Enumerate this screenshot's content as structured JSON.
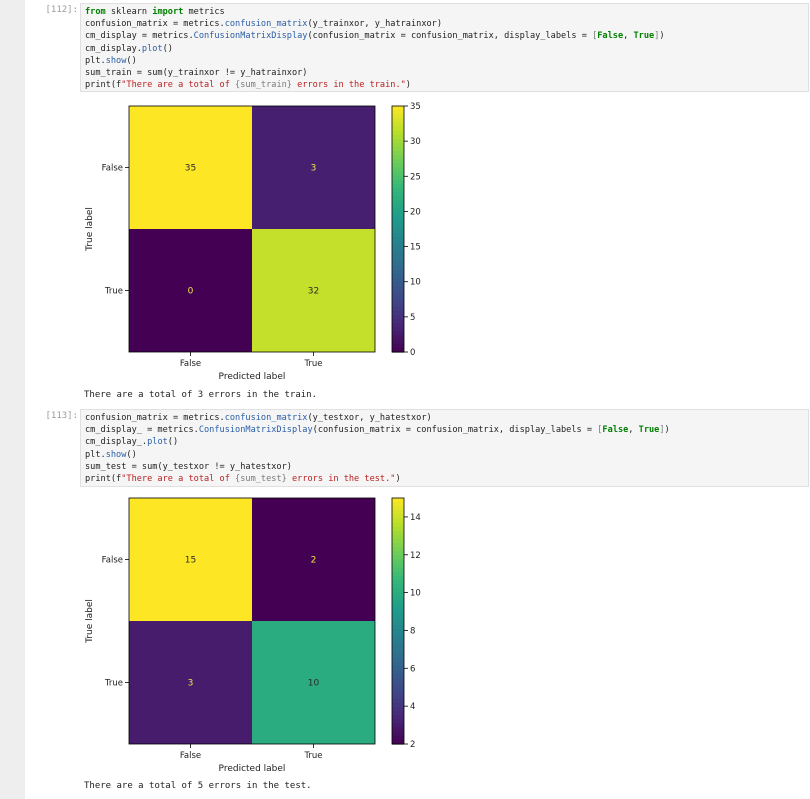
{
  "cells": [
    {
      "prompt": "[112]:",
      "code": [
        [
          {
            "t": "from",
            "c": "kw"
          },
          {
            "t": " sklearn "
          },
          {
            "t": "import",
            "c": "kw"
          },
          {
            "t": " metrics"
          }
        ],
        [
          {
            "t": "confusion_matrix = metrics."
          },
          {
            "t": "confusion_matrix",
            "c": "fn"
          },
          {
            "t": "(y_trainxor, y_hatrainxor)"
          }
        ],
        [
          {
            "t": "cm_display = metrics."
          },
          {
            "t": "ConfusionMatrixDisplay",
            "c": "fn"
          },
          {
            "t": "(confusion_matrix = confusion_matrix, display_labels = "
          },
          {
            "t": "[",
            "c": "brk"
          },
          {
            "t": "False",
            "c": "bool"
          },
          {
            "t": ", "
          },
          {
            "t": "True",
            "c": "bool"
          },
          {
            "t": "]",
            "c": "brk"
          },
          {
            "t": ")"
          }
        ],
        [
          {
            "t": "cm_display."
          },
          {
            "t": "plot",
            "c": "fn"
          },
          {
            "t": "()"
          }
        ],
        [
          {
            "t": "plt."
          },
          {
            "t": "show",
            "c": "fn"
          },
          {
            "t": "()"
          }
        ],
        [
          {
            "t": "sum_train = sum(y_trainxor != y_hatrainxor)"
          }
        ],
        [
          {
            "t": "print(f"
          },
          {
            "t": "\"There are a total of ",
            "c": "str"
          },
          {
            "t": "{sum_train}",
            "c": "brk"
          },
          {
            "t": " errors in the train.\"",
            "c": "str"
          },
          {
            "t": ")"
          }
        ]
      ],
      "output": "There are a total of 3 errors in the train.",
      "chart_data": {
        "type": "heatmap",
        "x_categories": [
          "False",
          "True"
        ],
        "y_categories": [
          "False",
          "True"
        ],
        "values": [
          [
            35,
            3
          ],
          [
            0,
            32
          ]
        ],
        "xlabel": "Predicted label",
        "ylabel": "True label",
        "colorbar": {
          "min": 0,
          "max": 35,
          "ticks": [
            0,
            5,
            10,
            15,
            20,
            25,
            30,
            35
          ]
        },
        "colormap": "viridis"
      }
    },
    {
      "prompt": "[113]:",
      "code": [
        [
          {
            "t": "confusion_matrix = metrics."
          },
          {
            "t": "confusion_matrix",
            "c": "fn"
          },
          {
            "t": "(y_testxor, y_hatestxor)"
          }
        ],
        [
          {
            "t": "cm_display_ = metrics."
          },
          {
            "t": "ConfusionMatrixDisplay",
            "c": "fn"
          },
          {
            "t": "(confusion_matrix = confusion_matrix, display_labels = "
          },
          {
            "t": "[",
            "c": "brk"
          },
          {
            "t": "False",
            "c": "bool"
          },
          {
            "t": ", "
          },
          {
            "t": "True",
            "c": "bool"
          },
          {
            "t": "]",
            "c": "brk"
          },
          {
            "t": ")"
          }
        ],
        [
          {
            "t": "cm_display_."
          },
          {
            "t": "plot",
            "c": "fn"
          },
          {
            "t": "()"
          }
        ],
        [
          {
            "t": "plt."
          },
          {
            "t": "show",
            "c": "fn"
          },
          {
            "t": "()"
          }
        ],
        [
          {
            "t": "sum_test = sum(y_testxor != y_hatestxor)"
          }
        ],
        [
          {
            "t": "print(f"
          },
          {
            "t": "\"There are a total of ",
            "c": "str"
          },
          {
            "t": "{sum_test}",
            "c": "brk"
          },
          {
            "t": " errors in the test.\"",
            "c": "str"
          },
          {
            "t": ")"
          }
        ]
      ],
      "output": "There are a total of 5 errors in the test.",
      "chart_data": {
        "type": "heatmap",
        "x_categories": [
          "False",
          "True"
        ],
        "y_categories": [
          "False",
          "True"
        ],
        "values": [
          [
            15,
            2
          ],
          [
            3,
            10
          ]
        ],
        "xlabel": "Predicted label",
        "ylabel": "True label",
        "colorbar": {
          "min": 2,
          "max": 15,
          "ticks": [
            2,
            4,
            6,
            8,
            10,
            12,
            14
          ]
        },
        "colormap": "viridis"
      }
    }
  ]
}
